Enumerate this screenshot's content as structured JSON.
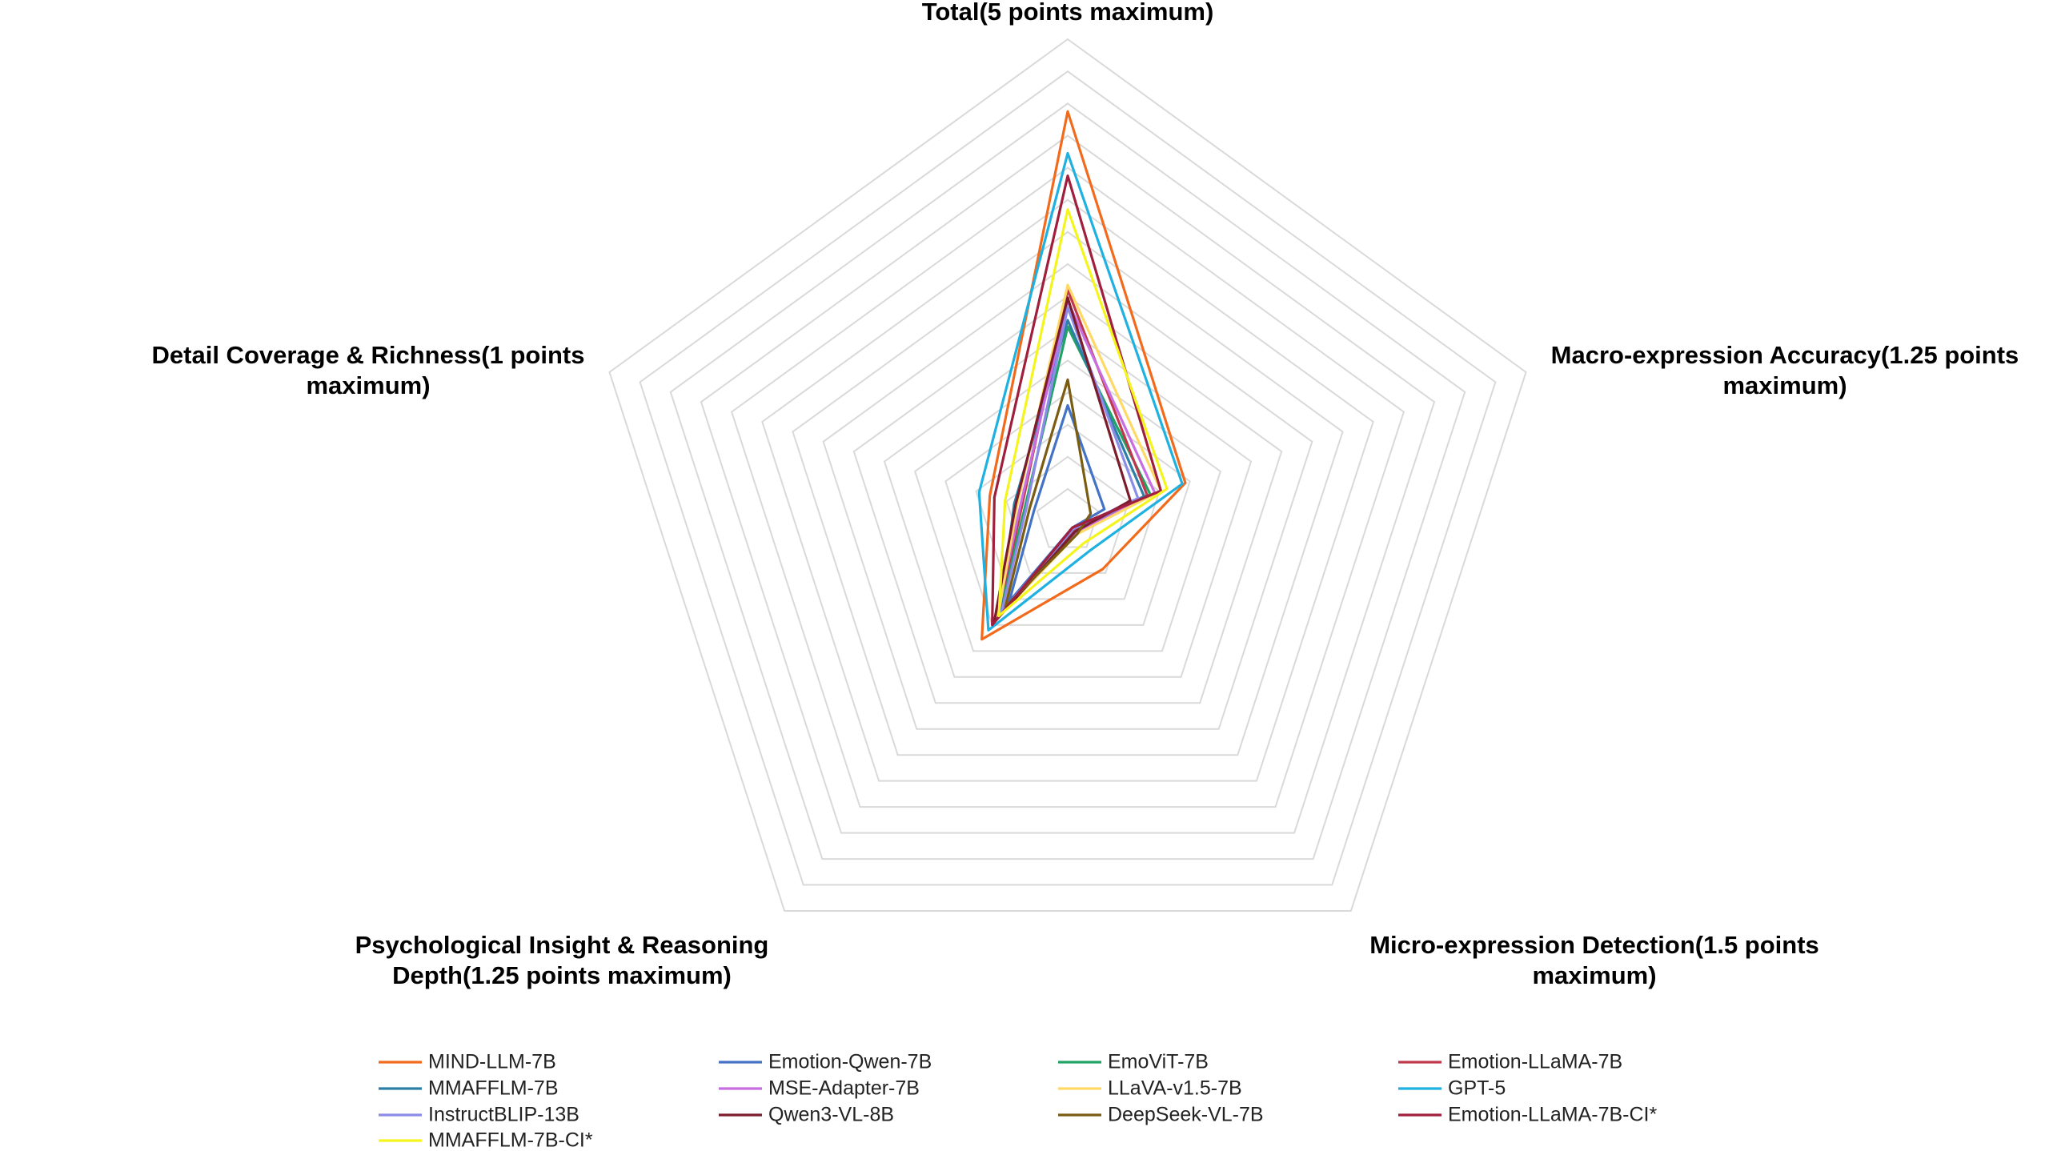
{
  "chart_data": {
    "type": "radar",
    "categories": [
      "Total(5 points maximum)",
      "Macro-expression Accuracy(1.25 points maximum)",
      "Micro-expression Detection(1.5 points maximum)",
      "Psychological Insight & Reasoning Depth(1.25 points maximum)",
      "Detail Coverage & Richness(1 points maximum)"
    ],
    "rlim": [
      0,
      3
    ],
    "rticks": [
      0.2,
      0.4,
      0.6,
      0.8,
      1,
      1.2,
      1.4,
      1.6,
      1.8,
      2,
      2.2,
      2.4,
      2.6,
      2.8,
      3
    ],
    "grid": true,
    "legend": "bottom",
    "series": [
      {
        "name": "MIND-LLM-7B",
        "color": "#f26b1d",
        "values": [
          2.55,
          0.77,
          0.37,
          0.91,
          0.51
        ]
      },
      {
        "name": "Emotion-Qwen-7B",
        "color": "#4472c4",
        "values": [
          0.72,
          0.24,
          0.05,
          0.62,
          0.22
        ]
      },
      {
        "name": "EmoViT-7B",
        "color": "#21a366",
        "values": [
          1.21,
          0.54,
          0.08,
          0.74,
          0.28
        ]
      },
      {
        "name": "Emotion-LLaMA-7B",
        "color": "#c0384b",
        "values": [
          1.44,
          0.52,
          0.07,
          0.75,
          0.3
        ]
      },
      {
        "name": "MMAFFLM-7B",
        "color": "#2e7fa8",
        "values": [
          1.25,
          0.5,
          0.08,
          0.72,
          0.35
        ]
      },
      {
        "name": "MSE-Adapter-7B",
        "color": "#c86ee0",
        "values": [
          1.37,
          0.57,
          0.09,
          0.76,
          0.31
        ]
      },
      {
        "name": "LLaVA-v1.5-7B",
        "color": "#ffd966",
        "values": [
          1.47,
          0.61,
          0.1,
          0.74,
          0.33
        ]
      },
      {
        "name": "GPT-5",
        "color": "#1fb1e0",
        "values": [
          2.29,
          0.75,
          0.23,
          0.84,
          0.58
        ]
      },
      {
        "name": "InstructBLIP-13B",
        "color": "#8c8ce8",
        "values": [
          1.33,
          0.46,
          0.06,
          0.7,
          0.27
        ]
      },
      {
        "name": "Qwen3-VL-8B",
        "color": "#7b1c2c",
        "values": [
          1.39,
          0.41,
          0.08,
          0.78,
          0.34
        ]
      },
      {
        "name": "DeepSeek-VL-7B",
        "color": "#7a5c12",
        "values": [
          0.88,
          0.15,
          0.1,
          0.66,
          0.25
        ]
      },
      {
        "name": "Emotion-LLaMA-7B-CI*",
        "color": "#a01f3c",
        "values": [
          2.15,
          0.61,
          0.05,
          0.8,
          0.48
        ]
      },
      {
        "name": "MMAFFLM-7B-CI*",
        "color": "#f5f51e",
        "values": [
          1.94,
          0.65,
          0.17,
          0.73,
          0.41
        ]
      }
    ]
  }
}
